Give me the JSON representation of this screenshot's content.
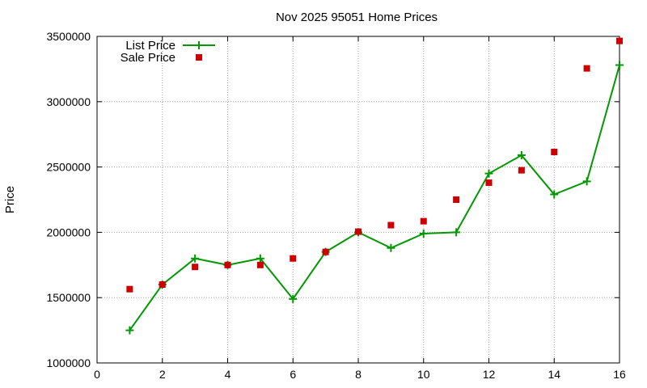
{
  "chart_data": {
    "type": "line",
    "title": "Nov 2025 95051 Home Prices",
    "xlabel": "",
    "ylabel": "Price",
    "xlim": [
      0,
      16
    ],
    "ylim": [
      1000000,
      3500000
    ],
    "xticks": [
      0,
      2,
      4,
      6,
      8,
      10,
      12,
      14,
      16
    ],
    "yticks": [
      1000000,
      1500000,
      2000000,
      2500000,
      3000000,
      3500000
    ],
    "x_tick_labels": [
      "0",
      "2",
      "4",
      "6",
      "8",
      "10",
      "12",
      "14",
      "16"
    ],
    "y_tick_labels": [
      "1000000",
      "1500000",
      "2000000",
      "2500000",
      "3000000",
      "3500000"
    ],
    "grid": true,
    "legend_position": "top-left",
    "series": [
      {
        "name": "List Price",
        "style": "line-with-plus-markers",
        "color": "#009900",
        "points": [
          {
            "x": 1,
            "y": 1250000
          },
          {
            "x": 2,
            "y": 1600000
          },
          {
            "x": 3,
            "y": 1800000
          },
          {
            "x": 4,
            "y": 1750000
          },
          {
            "x": 5,
            "y": 1800000
          },
          {
            "x": 6,
            "y": 1490000
          },
          {
            "x": 7,
            "y": 1850000
          },
          {
            "x": 8,
            "y": 2000000
          },
          {
            "x": 9,
            "y": 1880000
          },
          {
            "x": 10,
            "y": 1990000
          },
          {
            "x": 11,
            "y": 2000000
          },
          {
            "x": 12,
            "y": 2450000
          },
          {
            "x": 13,
            "y": 2590000
          },
          {
            "x": 14,
            "y": 2290000
          },
          {
            "x": 15,
            "y": 2390000
          },
          {
            "x": 16,
            "y": 3280000
          }
        ]
      },
      {
        "name": "Sale Price",
        "style": "square-markers",
        "color": "#cc0000",
        "points": [
          {
            "x": 1,
            "y": 1565000
          },
          {
            "x": 2,
            "y": 1600000
          },
          {
            "x": 3,
            "y": 1735000
          },
          {
            "x": 4,
            "y": 1750000
          },
          {
            "x": 5,
            "y": 1750000
          },
          {
            "x": 6,
            "y": 1800000
          },
          {
            "x": 7,
            "y": 1850000
          },
          {
            "x": 8,
            "y": 2005000
          },
          {
            "x": 9,
            "y": 2055000
          },
          {
            "x": 10,
            "y": 2085000
          },
          {
            "x": 11,
            "y": 2250000
          },
          {
            "x": 12,
            "y": 2380000
          },
          {
            "x": 13,
            "y": 2475000
          },
          {
            "x": 14,
            "y": 2615000
          },
          {
            "x": 15,
            "y": 3255000
          },
          {
            "x": 16,
            "y": 3465000
          }
        ]
      }
    ]
  }
}
